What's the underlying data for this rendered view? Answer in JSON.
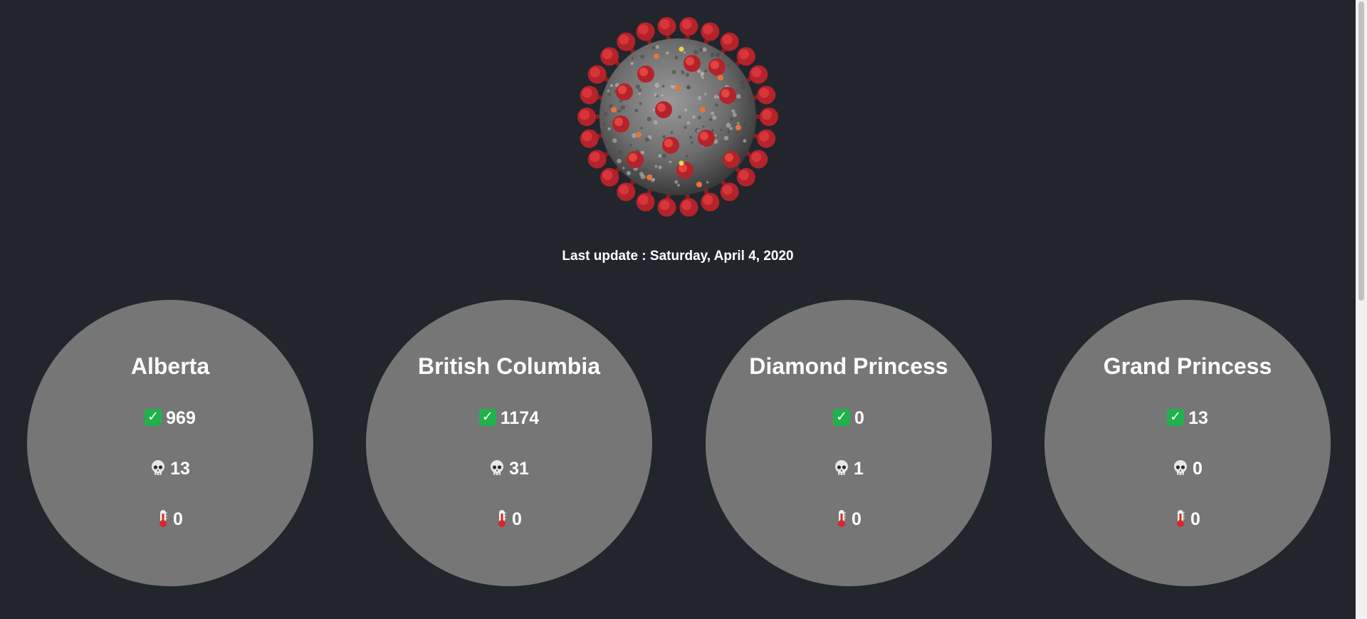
{
  "header": {
    "update_label": "Last update :",
    "update_date": "Saturday, April 4, 2020"
  },
  "icons": {
    "recovered": "check-mark-icon",
    "deaths": "skull-icon",
    "third": "thermometer-icon"
  },
  "colors": {
    "background": "#22252c",
    "card": "#767676",
    "check": "#21b14b",
    "virus": "#c0272d"
  },
  "regions": [
    {
      "name": "Alberta",
      "recovered": "969",
      "deaths": "13",
      "third": "0"
    },
    {
      "name": "British Columbia",
      "recovered": "1174",
      "deaths": "31",
      "third": "0"
    },
    {
      "name": "Diamond Princess",
      "recovered": "0",
      "deaths": "1",
      "third": "0"
    },
    {
      "name": "Grand Princess",
      "recovered": "13",
      "deaths": "0",
      "third": "0"
    }
  ]
}
